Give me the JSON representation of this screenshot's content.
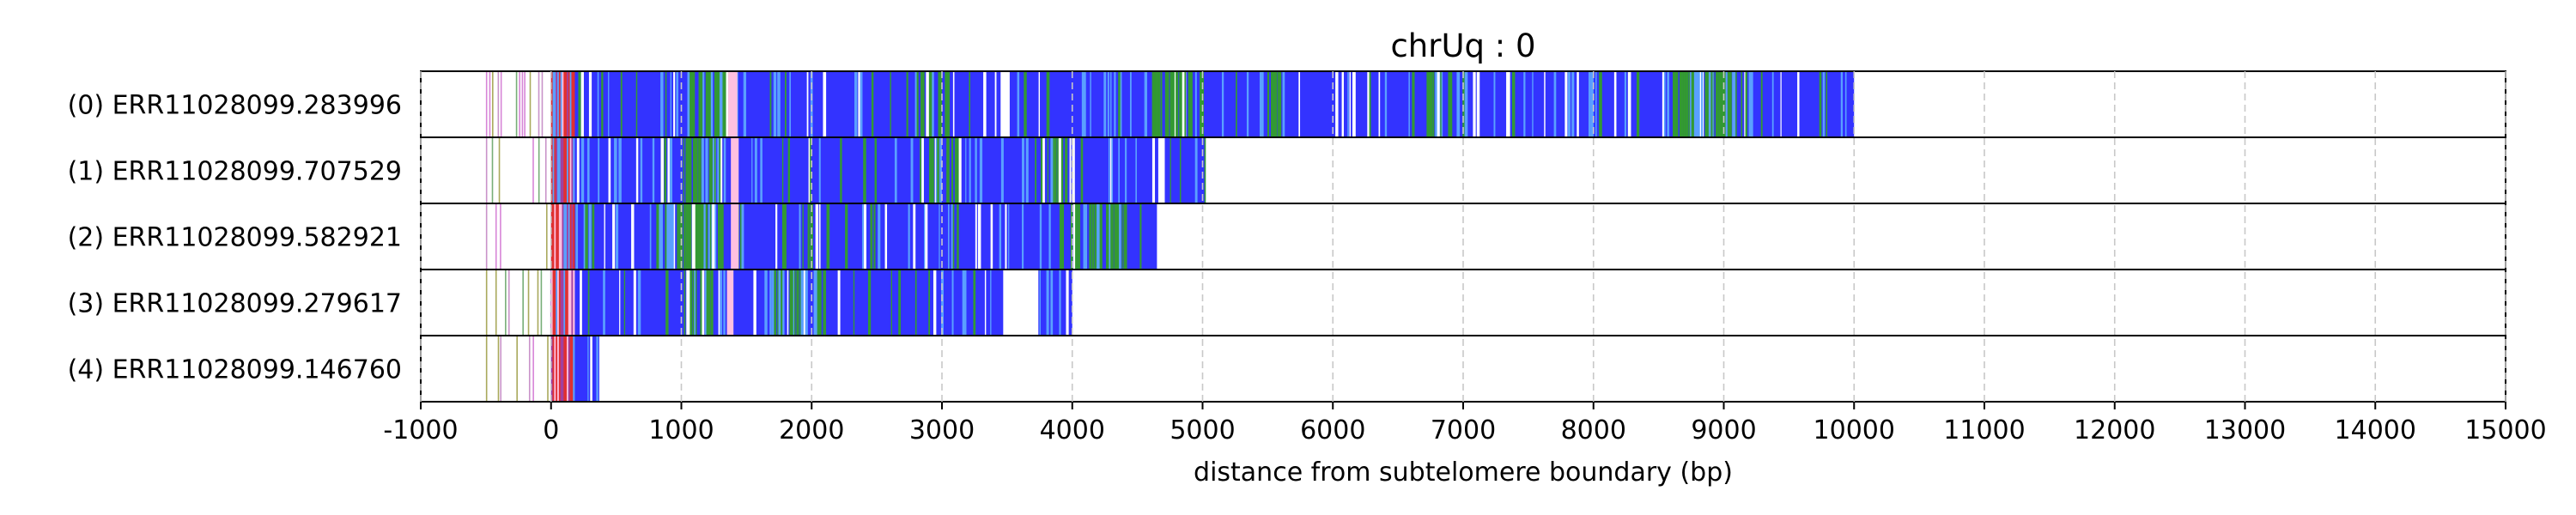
{
  "chart_data": {
    "type": "heatmap",
    "title": "chrUq : 0",
    "xlabel": "distance from subtelomere boundary (bp)",
    "xlim": [
      -1000,
      15000
    ],
    "xticks": [
      -1000,
      0,
      1000,
      2000,
      3000,
      4000,
      5000,
      6000,
      7000,
      8000,
      9000,
      10000,
      11000,
      12000,
      13000,
      14000,
      15000
    ],
    "grid": "vertical dashed",
    "colors": {
      "blue": "#3333ff",
      "green": "#339933",
      "lightblue": "#5aa0ff",
      "red": "#e03030",
      "pink": "#ffc0e0",
      "purple": "#a040a0",
      "white": "#ffffff",
      "thin": [
        "#d070d0",
        "#60a060",
        "#9a9a40",
        "#c080c0"
      ]
    },
    "reads": [
      {
        "label": "(0) ERR11028099.283996",
        "start": -500,
        "end": 10000,
        "filled_from": 0,
        "gaps": [
          [
            3450,
            3520
          ],
          [
            6150,
            6175
          ],
          [
            6800,
            6820
          ],
          [
            7330,
            7360
          ],
          [
            7780,
            7800
          ]
        ],
        "green_zones": [
          [
            1000,
            1400
          ],
          [
            2800,
            3100
          ],
          [
            4600,
            5000
          ],
          [
            5400,
            5600
          ],
          [
            6700,
            7100
          ],
          [
            8600,
            9200
          ]
        ],
        "pink": [
          [
            1360,
            1430
          ]
        ]
      },
      {
        "label": "(1) ERR11028099.707529",
        "start": -500,
        "end": 5020,
        "filled_from": 0,
        "gaps": [
          [
            4660,
            4710
          ]
        ],
        "green_zones": [
          [
            1000,
            1300
          ],
          [
            2900,
            3200
          ],
          [
            3700,
            3950
          ]
        ],
        "pink": [
          [
            1380,
            1440
          ]
        ]
      },
      {
        "label": "(2) ERR11028099.582921",
        "start": -500,
        "end": 4650,
        "filled_from": 0,
        "gaps": [
          [
            2400,
            2420
          ],
          [
            2870,
            2890
          ]
        ],
        "green_zones": [
          [
            800,
            1300
          ],
          [
            1700,
            2000
          ],
          [
            3900,
            4400
          ]
        ],
        "pink": [
          [
            1380,
            1440
          ]
        ]
      },
      {
        "label": "(3) ERR11028099.279617",
        "start": -500,
        "end": 4000,
        "filled_from": 0,
        "gaps": [
          [
            3470,
            3740
          ]
        ],
        "green_zones": [
          [
            1000,
            1200
          ],
          [
            1700,
            2100
          ]
        ],
        "pink": [
          [
            1350,
            1400
          ]
        ],
        "red": [
          [
            3640,
            3660
          ]
        ]
      },
      {
        "label": "(4) ERR11028099.146760",
        "start": -500,
        "end": 370,
        "filled_from": 0,
        "gaps": [],
        "green_zones": [],
        "pink": []
      }
    ]
  }
}
